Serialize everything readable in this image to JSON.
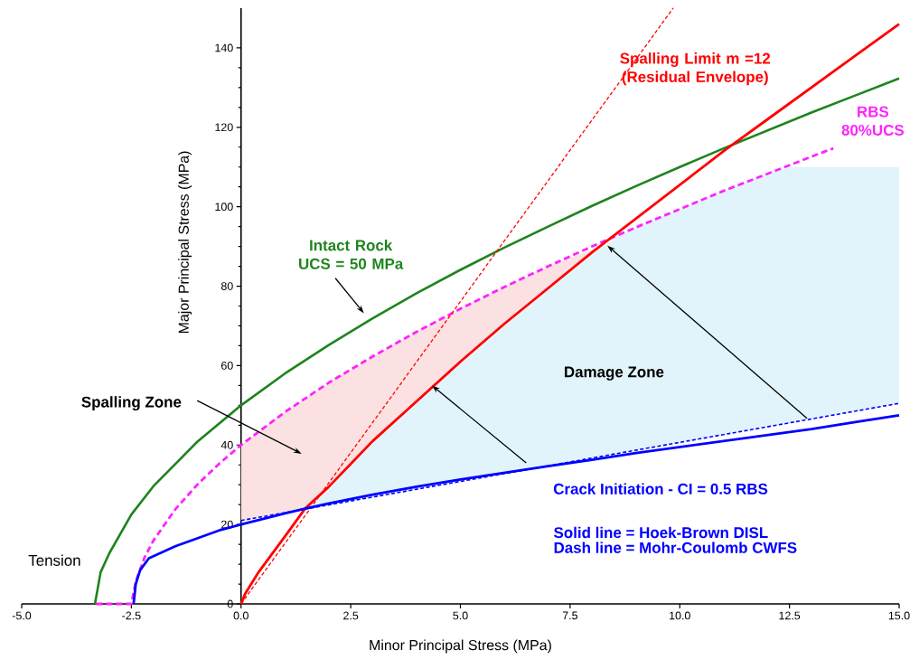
{
  "chart_data": {
    "type": "line",
    "xlabel": "Minor Principal Stress (MPa)",
    "ylabel": "Major Principal Stress (MPa)",
    "xlim": [
      -5,
      15
    ],
    "ylim": [
      0,
      150
    ],
    "xticks": [
      {
        "value": -5,
        "label": "-5.0"
      },
      {
        "value": -2.5,
        "label": "-2.5"
      },
      {
        "value": 0,
        "label": "0.0"
      },
      {
        "value": 2.5,
        "label": "2.5"
      },
      {
        "value": 5,
        "label": "5.0"
      },
      {
        "value": 7.5,
        "label": "7.5"
      },
      {
        "value": 10,
        "label": "10.0"
      },
      {
        "value": 12.5,
        "label": "12.5"
      },
      {
        "value": 15,
        "label": "15.0"
      }
    ],
    "yticks": [
      0,
      20,
      40,
      60,
      80,
      100,
      120,
      140
    ],
    "series": [
      {
        "type": "area",
        "color": "#fbe1e1",
        "x": [
          0,
          1,
          1.46,
          2,
          3,
          4,
          5,
          6,
          7,
          8.3
        ],
        "values": [
          40,
          48.3,
          51.7,
          55.7,
          62.3,
          68.5,
          74.3,
          79.8,
          85,
          90.5
        ]
      },
      {
        "type": "area",
        "color": "#e2f4fb",
        "x": [
          1.46,
          2,
          3,
          4,
          5,
          6,
          7,
          8.3,
          9,
          10,
          11,
          12,
          12.5,
          15
        ],
        "values": [
          24,
          29.5,
          41,
          51,
          61,
          70.5,
          79.5,
          90.5,
          94.8,
          99.4,
          104,
          108.3,
          110,
          110
        ]
      },
      {
        "name": "Intact Rock UCS = 50 MPa",
        "color": "#1e841e",
        "line_style": "solid",
        "x": [
          -3.33,
          -3.2,
          -3,
          -2.5,
          -2,
          -1,
          0,
          1,
          2,
          3,
          4,
          5,
          6,
          7,
          8,
          9,
          10,
          11,
          12,
          13,
          14,
          15
        ],
        "values": [
          0,
          8,
          12.8,
          22.5,
          29.6,
          40.8,
          50,
          58,
          65.2,
          71.9,
          78.2,
          84.1,
          89.7,
          95,
          100.2,
          105.2,
          110,
          114.7,
          119.2,
          123.7,
          128,
          132.3
        ]
      },
      {
        "name": "RBS 80%UCS",
        "color": "#ff22ff",
        "line_style": "dashed",
        "x": [
          -3.3,
          -2.5,
          -2.4,
          -2.2,
          -2,
          -1.5,
          -1,
          -0.5,
          0,
          1,
          2,
          3,
          4,
          5,
          6,
          7,
          8,
          9,
          10,
          11,
          12,
          13,
          13.5
        ],
        "values": [
          0,
          0,
          5.6,
          11.7,
          15.9,
          23.8,
          30,
          35.3,
          40,
          48.3,
          55.7,
          62.3,
          68.5,
          74.3,
          79.8,
          85,
          90,
          94.8,
          99.4,
          104,
          108.3,
          112.6,
          114.7
        ]
      },
      {
        "name": "Spalling Limit m =12 (Residual Envelope)",
        "color": "#ff0000",
        "line_style": "solid",
        "x": [
          0,
          0.1,
          0.4,
          1,
          1.46,
          2,
          3,
          4,
          5,
          6,
          7,
          8,
          9,
          10,
          11,
          12,
          13,
          14,
          15
        ],
        "values": [
          0,
          2.7,
          8,
          17,
          24,
          29.5,
          41,
          51,
          61,
          70.5,
          79.5,
          88.5,
          97,
          105.5,
          114,
          122,
          130,
          138,
          146
        ]
      },
      {
        "color": "#ff0000",
        "line_style": "dashed",
        "x": [
          0,
          9.85
        ],
        "values": [
          0,
          150
        ]
      },
      {
        "name": "Crack Initiation - CI = 0.5 RBS",
        "color": "#0000ff",
        "line_style": "solid",
        "x": [
          -2.45,
          -2.4,
          -2.3,
          -2.1,
          -1.5,
          -1,
          -0.5,
          0,
          1,
          1.46,
          2,
          3,
          4,
          5,
          6,
          7,
          8,
          9,
          10,
          11,
          12,
          13,
          14,
          15
        ],
        "values": [
          0,
          5,
          8.5,
          11.5,
          14.5,
          16.5,
          18.5,
          20,
          22.8,
          24,
          25.3,
          27.5,
          29.5,
          31.3,
          33,
          34.7,
          36.3,
          38,
          39.5,
          41,
          42.5,
          44,
          45.8,
          47.5
        ]
      },
      {
        "color": "#0000ff",
        "line_style": "dashed",
        "x": [
          0,
          15
        ],
        "values": [
          21,
          50.5
        ]
      }
    ],
    "annotations": [
      "Spalling Zone",
      "Damage Zone",
      "Solid line = Hoek-Brown DISL",
      "Dash line = Mohr-Coulomb CWFS",
      "Tension"
    ]
  }
}
